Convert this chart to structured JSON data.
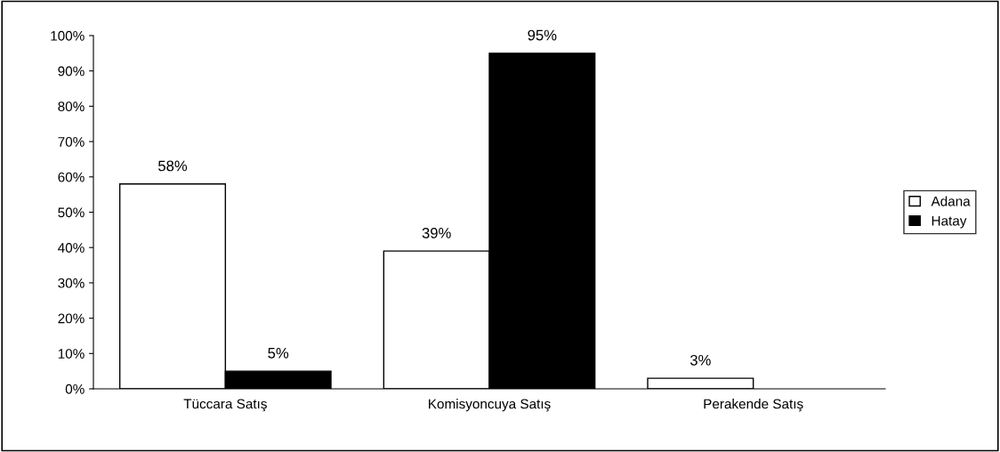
{
  "chart_data": {
    "type": "bar",
    "categories": [
      "Tüccara Satış",
      "Komisyoncuya Satış",
      "Perakende Satış"
    ],
    "series": [
      {
        "name": "Adana",
        "color": "#ffffff",
        "values": [
          58,
          39,
          3
        ],
        "value_labels": [
          "58%",
          "39%",
          "3%"
        ]
      },
      {
        "name": "Hatay",
        "color": "#000000",
        "values": [
          5,
          95,
          null
        ],
        "value_labels": [
          "5%",
          "95%",
          null
        ]
      }
    ],
    "ylim": [
      0,
      100
    ],
    "yticks": [
      {
        "value": 0,
        "label": "0%"
      },
      {
        "value": 10,
        "label": "10%"
      },
      {
        "value": 20,
        "label": "20%"
      },
      {
        "value": 30,
        "label": "30%"
      },
      {
        "value": 40,
        "label": "40%"
      },
      {
        "value": 50,
        "label": "50%"
      },
      {
        "value": 60,
        "label": "60%"
      },
      {
        "value": 70,
        "label": "70%"
      },
      {
        "value": 80,
        "label": "80%"
      },
      {
        "value": 90,
        "label": "90%"
      },
      {
        "value": 100,
        "label": "100%"
      }
    ],
    "grid": false,
    "legend": "right"
  }
}
